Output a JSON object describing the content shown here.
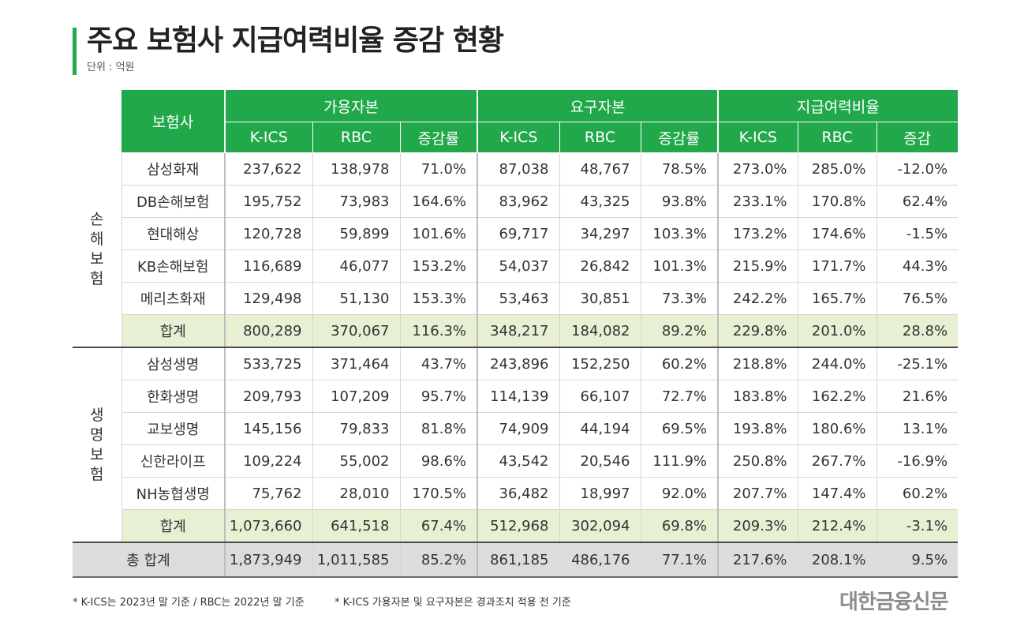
{
  "title": "주요 보험사 지급여력비율 증감 현황",
  "unit": "단위 : 억원",
  "header": {
    "insurer": "보험사",
    "groups": [
      "가용자본",
      "요구자본",
      "지급여력비율"
    ],
    "sub": [
      "K-ICS",
      "RBC",
      "증감률",
      "K-ICS",
      "RBC",
      "증감률",
      "K-ICS",
      "RBC",
      "증감"
    ]
  },
  "groups": [
    {
      "label": "손 해 보 험",
      "rows": [
        {
          "name": "삼성화재",
          "values": [
            "237,622",
            "138,978",
            "71.0%",
            "87,038",
            "48,767",
            "78.5%",
            "273.0%",
            "285.0%",
            "-12.0%"
          ]
        },
        {
          "name": "DB손해보험",
          "values": [
            "195,752",
            "73,983",
            "164.6%",
            "83,962",
            "43,325",
            "93.8%",
            "233.1%",
            "170.8%",
            "62.4%"
          ]
        },
        {
          "name": "현대해상",
          "values": [
            "120,728",
            "59,899",
            "101.6%",
            "69,717",
            "34,297",
            "103.3%",
            "173.2%",
            "174.6%",
            "-1.5%"
          ]
        },
        {
          "name": "KB손해보험",
          "values": [
            "116,689",
            "46,077",
            "153.2%",
            "54,037",
            "26,842",
            "101.3%",
            "215.9%",
            "171.7%",
            "44.3%"
          ]
        },
        {
          "name": "메리츠화재",
          "values": [
            "129,498",
            "51,130",
            "153.3%",
            "53,463",
            "30,851",
            "73.3%",
            "242.2%",
            "165.7%",
            "76.5%"
          ]
        },
        {
          "name": "합계",
          "values": [
            "800,289",
            "370,067",
            "116.3%",
            "348,217",
            "184,082",
            "89.2%",
            "229.8%",
            "201.0%",
            "28.8%"
          ]
        }
      ]
    },
    {
      "label": "생 명 보 험",
      "rows": [
        {
          "name": "삼성생명",
          "values": [
            "533,725",
            "371,464",
            "43.7%",
            "243,896",
            "152,250",
            "60.2%",
            "218.8%",
            "244.0%",
            "-25.1%"
          ]
        },
        {
          "name": "한화생명",
          "values": [
            "209,793",
            "107,209",
            "95.7%",
            "114,139",
            "66,107",
            "72.7%",
            "183.8%",
            "162.2%",
            "21.6%"
          ]
        },
        {
          "name": "교보생명",
          "values": [
            "145,156",
            "79,833",
            "81.8%",
            "74,909",
            "44,194",
            "69.5%",
            "193.8%",
            "180.6%",
            "13.1%"
          ]
        },
        {
          "name": "신한라이프",
          "values": [
            "109,224",
            "55,002",
            "98.6%",
            "43,542",
            "20,546",
            "111.9%",
            "250.8%",
            "267.7%",
            "-16.9%"
          ]
        },
        {
          "name": "NH농협생명",
          "values": [
            "75,762",
            "28,010",
            "170.5%",
            "36,482",
            "18,997",
            "92.0%",
            "207.7%",
            "147.4%",
            "60.2%"
          ]
        },
        {
          "name": "합계",
          "values": [
            "1,073,660",
            "641,518",
            "67.4%",
            "512,968",
            "302,094",
            "69.8%",
            "209.3%",
            "212.4%",
            "-3.1%"
          ]
        }
      ]
    }
  ],
  "total": {
    "name": "총 합계",
    "values": [
      "1,873,949",
      "1,011,585",
      "85.2%",
      "861,185",
      "486,176",
      "77.1%",
      "217.6%",
      "208.1%",
      "9.5%"
    ]
  },
  "notes": [
    "* K-ICS는 2023년 말 기준 / RBC는 2022년 말 기준",
    "* K-ICS 가용자본 및 요구자본은 경과조치 적용 전 기준"
  ],
  "logo": "대한금융신문",
  "colors": {
    "header_green": "#21a84a",
    "sum_row": "#e7f0d3",
    "total_row": "#dcdcdc"
  }
}
